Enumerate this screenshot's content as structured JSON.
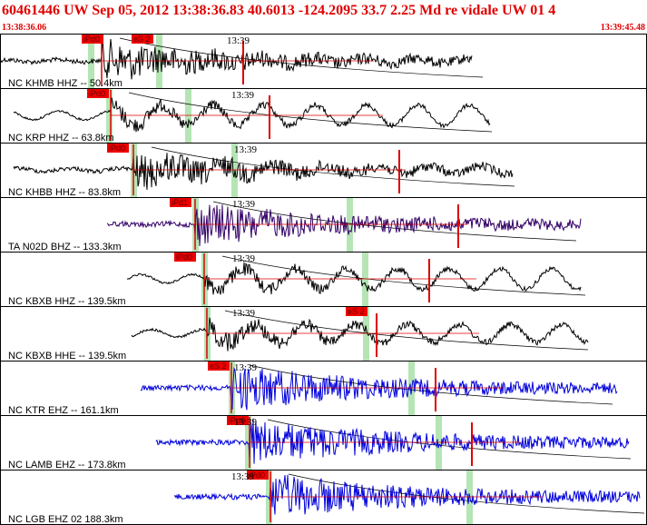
{
  "header": {
    "title": "60461446 UW Sep 05, 2012 13:38:36.83   40.6013 -124.2095 33.7 2.25 Md re vidale UW 01   4",
    "start_time": "13:38:36.06",
    "end_time": "13:39:45.48"
  },
  "traces": [
    {
      "label": "NC KHMB HHZ -- 50.4km",
      "time_mark": "13:39",
      "picks": [
        "iPd0",
        "eS 2"
      ]
    },
    {
      "label": "NC KRP HHZ -- 63.8km",
      "time_mark": "13:39",
      "picks": [
        "iPd0"
      ]
    },
    {
      "label": "NC KHBB HHZ -- 83.8km",
      "time_mark": "13:39",
      "picks": [
        "iPd0"
      ]
    },
    {
      "label": "TA N02D BHZ -- 133.3km",
      "time_mark": "13:39",
      "picks": [
        "iPd1"
      ]
    },
    {
      "label": "NC KBXB HHZ -- 139.5km",
      "time_mark": "13:39",
      "picks": [
        "iPd0"
      ]
    },
    {
      "label": "NC KBXB HHE -- 139.5km",
      "time_mark": "13:39",
      "picks": [
        "eS 2"
      ]
    },
    {
      "label": "NC KTR EHZ -- 161.1km",
      "time_mark": "13:39",
      "picks": [
        "eS 2"
      ]
    },
    {
      "label": "NC LAMB EHZ -- 173.8km",
      "time_mark": "13:39",
      "picks": [
        "iPd0"
      ]
    },
    {
      "label": "NC LGB EHZ 02 188.3km",
      "time_mark": "13:39",
      "picks": [
        "iPd0"
      ]
    }
  ]
}
